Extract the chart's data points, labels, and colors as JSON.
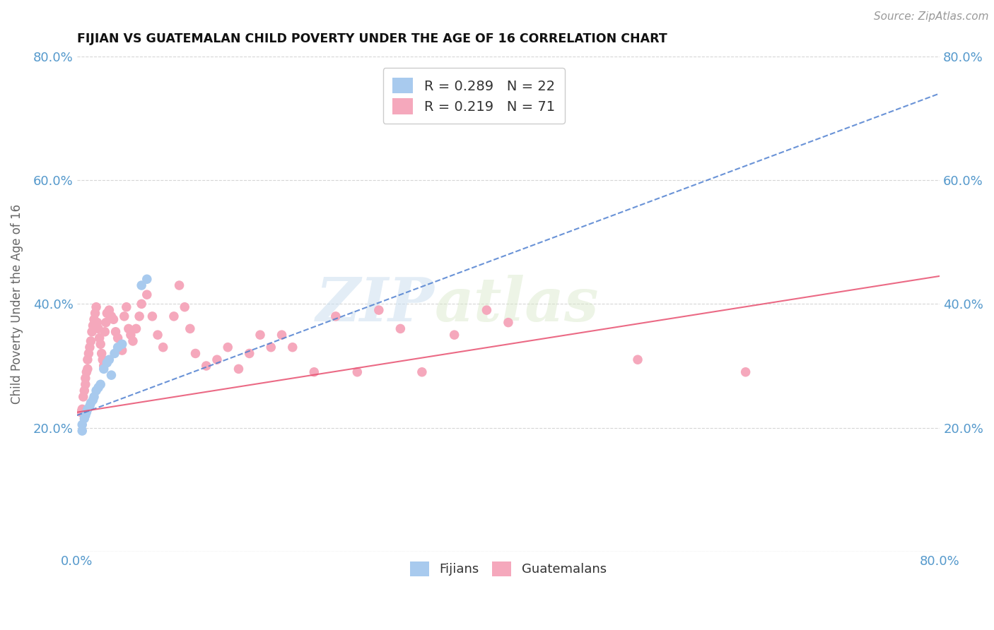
{
  "title": "FIJIAN VS GUATEMALAN CHILD POVERTY UNDER THE AGE OF 16 CORRELATION CHART",
  "source": "Source: ZipAtlas.com",
  "ylabel": "Child Poverty Under the Age of 16",
  "xlim": [
    0.0,
    0.8
  ],
  "ylim": [
    0.0,
    0.8
  ],
  "xticks": [
    0.0,
    0.1,
    0.2,
    0.3,
    0.4,
    0.5,
    0.6,
    0.7,
    0.8
  ],
  "yticks": [
    0.0,
    0.2,
    0.4,
    0.6,
    0.8
  ],
  "fijian_color": "#a8caee",
  "guatemalan_color": "#f5a8bc",
  "fijian_line_color": "#5080d0",
  "guatemalan_line_color": "#e85070",
  "fijian_R": 0.289,
  "fijian_N": 22,
  "guatemalan_R": 0.219,
  "guatemalan_N": 71,
  "watermark_zip": "ZIP",
  "watermark_atlas": "atlas",
  "background_color": "#ffffff",
  "grid_color": "#cccccc",
  "tick_label_color": "#5599cc",
  "legend_R_color": "#5599cc",
  "fijians_x": [
    0.005,
    0.005,
    0.007,
    0.008,
    0.009,
    0.01,
    0.012,
    0.013,
    0.015,
    0.016,
    0.018,
    0.02,
    0.022,
    0.025,
    0.028,
    0.03,
    0.032,
    0.035,
    0.038,
    0.042,
    0.06,
    0.065
  ],
  "fijians_y": [
    0.195,
    0.205,
    0.215,
    0.22,
    0.225,
    0.23,
    0.235,
    0.24,
    0.245,
    0.25,
    0.26,
    0.265,
    0.27,
    0.295,
    0.305,
    0.31,
    0.285,
    0.32,
    0.33,
    0.335,
    0.43,
    0.44
  ],
  "guatemalans_x": [
    0.004,
    0.005,
    0.006,
    0.007,
    0.008,
    0.008,
    0.009,
    0.01,
    0.01,
    0.011,
    0.012,
    0.013,
    0.014,
    0.015,
    0.016,
    0.017,
    0.018,
    0.019,
    0.02,
    0.021,
    0.022,
    0.023,
    0.024,
    0.025,
    0.026,
    0.027,
    0.028,
    0.03,
    0.032,
    0.034,
    0.036,
    0.038,
    0.04,
    0.042,
    0.044,
    0.046,
    0.048,
    0.05,
    0.052,
    0.055,
    0.058,
    0.06,
    0.065,
    0.07,
    0.075,
    0.08,
    0.09,
    0.095,
    0.1,
    0.105,
    0.11,
    0.12,
    0.13,
    0.14,
    0.15,
    0.16,
    0.17,
    0.18,
    0.19,
    0.2,
    0.22,
    0.24,
    0.26,
    0.28,
    0.3,
    0.32,
    0.35,
    0.38,
    0.4,
    0.52,
    0.62
  ],
  "guatemalans_y": [
    0.225,
    0.23,
    0.25,
    0.26,
    0.27,
    0.28,
    0.29,
    0.295,
    0.31,
    0.32,
    0.33,
    0.34,
    0.355,
    0.365,
    0.375,
    0.385,
    0.395,
    0.37,
    0.36,
    0.345,
    0.335,
    0.32,
    0.31,
    0.3,
    0.355,
    0.37,
    0.385,
    0.39,
    0.38,
    0.375,
    0.355,
    0.345,
    0.33,
    0.325,
    0.38,
    0.395,
    0.36,
    0.35,
    0.34,
    0.36,
    0.38,
    0.4,
    0.415,
    0.38,
    0.35,
    0.33,
    0.38,
    0.43,
    0.395,
    0.36,
    0.32,
    0.3,
    0.31,
    0.33,
    0.295,
    0.32,
    0.35,
    0.33,
    0.35,
    0.33,
    0.29,
    0.38,
    0.29,
    0.39,
    0.36,
    0.29,
    0.35,
    0.39,
    0.37,
    0.31,
    0.29
  ],
  "fij_line_x0": 0.0,
  "fij_line_y0": 0.22,
  "fij_line_x1": 0.8,
  "fij_line_y1": 0.74,
  "gua_line_x0": 0.0,
  "gua_line_y0": 0.225,
  "gua_line_x1": 0.8,
  "gua_line_y1": 0.445
}
